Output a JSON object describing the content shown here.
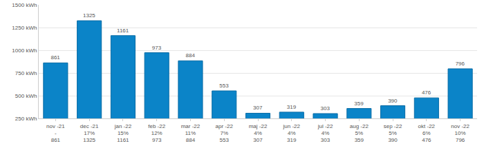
{
  "chart_data": {
    "type": "bar",
    "categories": [
      "nov -21\n-\n861",
      "dec -21\n17%\n1325",
      "jan -22\n15%\n1161",
      "feb -22\n12%\n973",
      "mar -22\n11%\n884",
      "apr -22\n7%\n553",
      "maj -22\n4%\n307",
      "jun -22\n4%\n319",
      "jul -22\n4%\n303",
      "aug -22\n5%\n359",
      "sep -22\n5%\n390",
      "okt -22\n6%\n476",
      "nov -22\n10%\n796"
    ],
    "values": [
      861,
      1325,
      1161,
      973,
      884,
      553,
      307,
      319,
      303,
      359,
      390,
      476,
      796
    ],
    "color": "#0b84c8",
    "ylim": [
      250,
      1500
    ],
    "yticks": [
      {
        "value": 250,
        "label": "250 kWh"
      },
      {
        "value": 500,
        "label": "500 kWh"
      },
      {
        "value": 750,
        "label": "750 kWh"
      },
      {
        "value": 1000,
        "label": "1000 kWh"
      },
      {
        "value": 1250,
        "label": "1250 kWh"
      },
      {
        "value": 1500,
        "label": "1500 kWh"
      }
    ],
    "grid": true,
    "data_labels": true
  }
}
